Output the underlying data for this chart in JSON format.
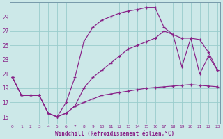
{
  "xlabel": "Windchill (Refroidissement éolien,°C)",
  "bg_color": "#cce8e8",
  "line_color": "#882288",
  "grid_color": "#99cccc",
  "yticks": [
    15,
    17,
    19,
    21,
    23,
    25,
    27,
    29
  ],
  "xticks": [
    0,
    1,
    2,
    3,
    4,
    5,
    6,
    7,
    8,
    9,
    10,
    11,
    12,
    13,
    14,
    15,
    16,
    17,
    18,
    19,
    20,
    21,
    22,
    23
  ],
  "ylim": [
    14.0,
    31.0
  ],
  "xlim": [
    -0.3,
    23.3
  ],
  "series1_y": [
    20.5,
    18.0,
    18.0,
    18.0,
    15.5,
    15.0,
    15.5,
    16.5,
    17.0,
    17.5,
    18.0,
    18.2,
    18.4,
    18.6,
    18.8,
    19.0,
    19.1,
    19.2,
    19.3,
    19.4,
    19.5,
    19.4,
    19.3,
    19.2
  ],
  "series2_y": [
    20.5,
    18.0,
    18.0,
    18.0,
    15.5,
    15.0,
    15.5,
    16.5,
    19.0,
    20.5,
    21.5,
    22.5,
    23.5,
    24.5,
    25.0,
    25.5,
    26.0,
    27.0,
    26.5,
    26.0,
    26.0,
    25.8,
    24.0,
    21.5
  ],
  "series3_y": [
    20.5,
    18.0,
    18.0,
    18.0,
    15.5,
    15.0,
    17.0,
    20.5,
    25.5,
    27.5,
    28.5,
    29.0,
    29.5,
    29.8,
    30.0,
    30.3,
    30.3,
    27.5,
    26.5,
    22.0,
    26.0,
    21.0,
    23.5,
    21.5
  ]
}
